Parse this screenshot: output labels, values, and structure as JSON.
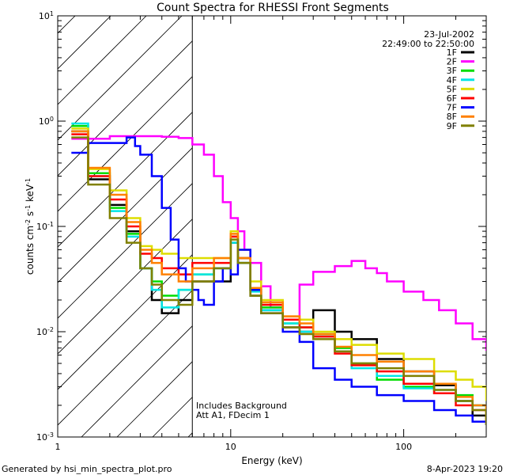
{
  "chart_data": {
    "type": "line",
    "title": "Count Spectra for RHESSI Front Segments",
    "xlabel": "Energy (keV)",
    "ylabel": {
      "base": "counts cm",
      "e1": "-2",
      "mid": " s",
      "e2": "-1",
      "tail": " keV",
      "e3": "-1"
    },
    "x_scale": "log",
    "y_scale": "log",
    "xlim": [
      1,
      300
    ],
    "ylim": [
      0.001,
      10
    ],
    "x_ticks": [
      {
        "value": 1,
        "label": "1"
      },
      {
        "value": 10,
        "label": "10"
      },
      {
        "value": 100,
        "label": "100"
      }
    ],
    "y_ticks": [
      {
        "value": 0.001,
        "base": "10",
        "exp": "-3"
      },
      {
        "value": 0.01,
        "base": "10",
        "exp": "-2"
      },
      {
        "value": 0.1,
        "base": "10",
        "exp": "-1"
      },
      {
        "value": 1,
        "base": "10",
        "exp": "0"
      },
      {
        "value": 10,
        "base": "10",
        "exp": "1"
      }
    ],
    "hatched_region_below_keV": 6,
    "date": "23-Jul-2002",
    "time_range": "22:49:00 to 22:50:00",
    "annotations": [
      "Includes Background",
      "Att A1, FDecim 1"
    ],
    "legend_position": "top-right",
    "series": [
      {
        "name": "1F",
        "color": "#000000",
        "x": [
          1.2,
          1.5,
          2,
          2.5,
          3,
          3.5,
          4,
          5,
          6,
          8,
          10,
          11,
          13,
          15,
          20,
          25,
          30,
          40,
          50,
          70,
          100,
          150,
          200,
          250,
          300
        ],
        "y": [
          0.8,
          0.28,
          0.16,
          0.09,
          0.04,
          0.02,
          0.015,
          0.02,
          0.03,
          0.03,
          0.07,
          0.045,
          0.022,
          0.016,
          0.011,
          0.01,
          0.016,
          0.01,
          0.0085,
          0.0055,
          0.0042,
          0.0031,
          0.0022,
          0.0016,
          0.0013
        ]
      },
      {
        "name": "2F",
        "color": "#ff00ff",
        "x": [
          1.2,
          2,
          3,
          4,
          5,
          6,
          7,
          8,
          9,
          10,
          11,
          12,
          13,
          15,
          17,
          20,
          25,
          30,
          40,
          50,
          60,
          70,
          80,
          100,
          130,
          160,
          200,
          250,
          300
        ],
        "y": [
          0.68,
          0.72,
          0.72,
          0.71,
          0.69,
          0.6,
          0.48,
          0.3,
          0.17,
          0.12,
          0.09,
          0.06,
          0.045,
          0.027,
          0.017,
          0.013,
          0.028,
          0.037,
          0.042,
          0.047,
          0.04,
          0.036,
          0.03,
          0.024,
          0.02,
          0.016,
          0.012,
          0.0085,
          0.0066
        ]
      },
      {
        "name": "3F",
        "color": "#00dd00",
        "x": [
          1.2,
          1.5,
          2,
          2.5,
          3,
          3.5,
          4,
          5,
          6,
          8,
          10,
          11,
          13,
          15,
          20,
          25,
          30,
          40,
          50,
          70,
          100,
          150,
          200,
          250,
          300
        ],
        "y": [
          0.9,
          0.32,
          0.15,
          0.085,
          0.04,
          0.03,
          0.022,
          0.025,
          0.035,
          0.04,
          0.08,
          0.05,
          0.025,
          0.017,
          0.012,
          0.011,
          0.0095,
          0.007,
          0.005,
          0.0035,
          0.003,
          0.0026,
          0.0025,
          0.002,
          0.0015
        ]
      },
      {
        "name": "4F",
        "color": "#00e5e5",
        "x": [
          1.2,
          1.5,
          2,
          2.5,
          3,
          3.5,
          4,
          5,
          6,
          8,
          10,
          11,
          13,
          15,
          20,
          25,
          30,
          40,
          50,
          70,
          100,
          150,
          200,
          250,
          300
        ],
        "y": [
          0.95,
          0.3,
          0.14,
          0.08,
          0.04,
          0.025,
          0.017,
          0.025,
          0.035,
          0.04,
          0.07,
          0.045,
          0.024,
          0.016,
          0.012,
          0.01,
          0.009,
          0.0065,
          0.0045,
          0.0038,
          0.0029,
          0.0028,
          0.0022,
          0.002,
          0.0016
        ]
      },
      {
        "name": "5F",
        "color": "#dddd00",
        "x": [
          1.2,
          1.5,
          2,
          2.5,
          3,
          3.5,
          4,
          5,
          6,
          8,
          10,
          11,
          13,
          15,
          20,
          25,
          30,
          40,
          50,
          70,
          100,
          150,
          200,
          250,
          300
        ],
        "y": [
          0.85,
          0.35,
          0.22,
          0.12,
          0.065,
          0.06,
          0.055,
          0.05,
          0.05,
          0.05,
          0.09,
          0.06,
          0.03,
          0.02,
          0.014,
          0.013,
          0.01,
          0.0085,
          0.0075,
          0.0062,
          0.0055,
          0.0042,
          0.0035,
          0.003,
          0.0022
        ]
      },
      {
        "name": "6F",
        "color": "#ff0000",
        "x": [
          1.2,
          1.5,
          2,
          2.5,
          3,
          3.5,
          4,
          5,
          6,
          8,
          10,
          11,
          13,
          15,
          20,
          25,
          30,
          40,
          50,
          70,
          100,
          150,
          200,
          250,
          300
        ],
        "y": [
          0.75,
          0.3,
          0.18,
          0.1,
          0.055,
          0.05,
          0.04,
          0.035,
          0.045,
          0.045,
          0.08,
          0.05,
          0.025,
          0.018,
          0.013,
          0.011,
          0.009,
          0.0062,
          0.0048,
          0.0042,
          0.0032,
          0.0026,
          0.002,
          0.0018,
          0.0014
        ]
      },
      {
        "name": "7F",
        "color": "#0000ff",
        "x": [
          1.2,
          1.5,
          2,
          2.5,
          2.8,
          3,
          3.5,
          4,
          4.5,
          5,
          5.5,
          6,
          6.5,
          7,
          8,
          9,
          10,
          11,
          13,
          15,
          20,
          25,
          30,
          40,
          50,
          70,
          100,
          150,
          200,
          250,
          300
        ],
        "y": [
          0.5,
          0.62,
          0.62,
          0.7,
          0.58,
          0.48,
          0.3,
          0.15,
          0.075,
          0.04,
          0.03,
          0.025,
          0.02,
          0.018,
          0.03,
          0.04,
          0.035,
          0.06,
          0.025,
          0.015,
          0.01,
          0.008,
          0.0045,
          0.0035,
          0.003,
          0.0025,
          0.0022,
          0.0018,
          0.0016,
          0.0014,
          0.0013
        ]
      },
      {
        "name": "8F",
        "color": "#ff8000",
        "x": [
          1.2,
          1.5,
          2,
          2.5,
          3,
          3.5,
          4,
          5,
          6,
          8,
          10,
          11,
          13,
          15,
          20,
          25,
          30,
          40,
          50,
          70,
          100,
          150,
          200,
          250,
          300
        ],
        "y": [
          0.8,
          0.36,
          0.2,
          0.11,
          0.06,
          0.045,
          0.035,
          0.03,
          0.04,
          0.05,
          0.085,
          0.05,
          0.026,
          0.019,
          0.014,
          0.012,
          0.0095,
          0.0072,
          0.006,
          0.0052,
          0.0042,
          0.0032,
          0.0024,
          0.002,
          0.0016
        ]
      },
      {
        "name": "9F",
        "color": "#808000",
        "x": [
          1.2,
          1.5,
          2,
          2.5,
          3,
          3.5,
          4,
          5,
          6,
          8,
          10,
          11,
          13,
          15,
          20,
          25,
          30,
          40,
          50,
          70,
          100,
          150,
          200,
          250,
          300
        ],
        "y": [
          0.7,
          0.25,
          0.12,
          0.07,
          0.04,
          0.028,
          0.02,
          0.018,
          0.03,
          0.04,
          0.075,
          0.045,
          0.022,
          0.015,
          0.011,
          0.0095,
          0.0085,
          0.0065,
          0.005,
          0.0045,
          0.0038,
          0.0028,
          0.0022,
          0.0018,
          0.0013
        ]
      }
    ]
  },
  "footer": {
    "left": "Generated by hsi_min_spectra_plot.pro",
    "right": "8-Apr-2023 19:20"
  }
}
